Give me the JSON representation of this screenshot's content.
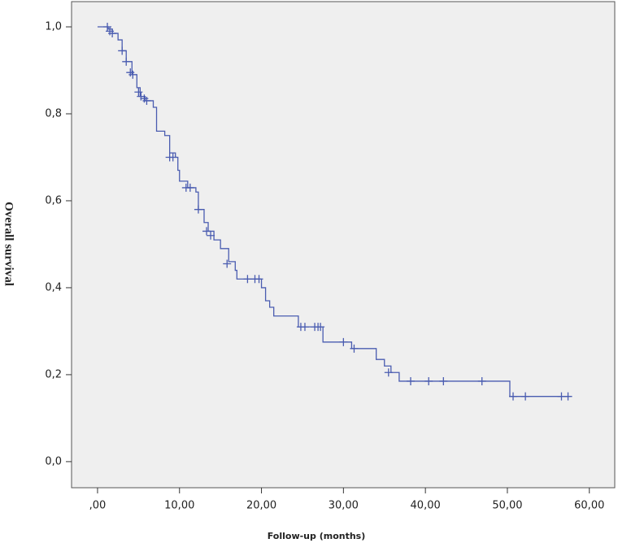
{
  "chart_data": {
    "type": "step",
    "y_label": "Overall survival",
    "x_label": "Follow-up (months)",
    "color": "#4a5cb0",
    "x": [
      0,
      1.3,
      1.8,
      2.5,
      3.0,
      3.5,
      4.2,
      4.8,
      5.2,
      5.8,
      6.8,
      7.2,
      8.2,
      8.8,
      9.5,
      9.8,
      10.0,
      11.0,
      12.0,
      12.3,
      13.0,
      13.5,
      14.2,
      15.0,
      16.0,
      16.8,
      17.0,
      20.0,
      20.5,
      21.0,
      21.5,
      24.5,
      27.5,
      31.0,
      34.0,
      35.0,
      35.8,
      36.8,
      50.3,
      57.5
    ],
    "values": [
      1.0,
      0.995,
      0.985,
      0.97,
      0.945,
      0.92,
      0.89,
      0.86,
      0.84,
      0.83,
      0.815,
      0.76,
      0.75,
      0.71,
      0.7,
      0.67,
      0.645,
      0.63,
      0.62,
      0.58,
      0.55,
      0.53,
      0.51,
      0.49,
      0.46,
      0.44,
      0.42,
      0.4,
      0.37,
      0.355,
      0.335,
      0.31,
      0.275,
      0.26,
      0.235,
      0.22,
      0.205,
      0.185,
      0.15,
      0.15
    ],
    "censored": {
      "x": [
        1.2,
        1.5,
        1.8,
        3.0,
        3.5,
        4.0,
        4.3,
        5.0,
        5.3,
        5.7,
        6.0,
        8.8,
        9.2,
        10.8,
        11.3,
        12.3,
        13.3,
        13.8,
        15.8,
        18.3,
        19.2,
        19.7,
        24.8,
        25.3,
        26.5,
        26.9,
        27.2,
        30.0,
        31.3,
        35.5,
        38.2,
        40.4,
        42.2,
        46.9,
        50.7,
        52.2,
        56.6,
        57.4
      ],
      "values": [
        1.0,
        0.99,
        0.985,
        0.945,
        0.92,
        0.895,
        0.89,
        0.85,
        0.84,
        0.835,
        0.83,
        0.7,
        0.7,
        0.63,
        0.63,
        0.58,
        0.53,
        0.52,
        0.455,
        0.42,
        0.42,
        0.42,
        0.31,
        0.31,
        0.31,
        0.31,
        0.31,
        0.275,
        0.26,
        0.205,
        0.185,
        0.185,
        0.185,
        0.185,
        0.15,
        0.15,
        0.15,
        0.15
      ]
    },
    "xlim": [
      -3.17,
      63.1
    ],
    "ylim": [
      -0.06,
      1.058
    ],
    "xticks": [
      {
        "value": 0,
        "label": ",00"
      },
      {
        "value": 10,
        "label": "10,00"
      },
      {
        "value": 20,
        "label": "20,00"
      },
      {
        "value": 30,
        "label": "30,00"
      },
      {
        "value": 40,
        "label": "40,00"
      },
      {
        "value": 50,
        "label": "50,00"
      },
      {
        "value": 60,
        "label": "60,00"
      }
    ],
    "yticks": [
      {
        "value": 0,
        "label": "0,0"
      },
      {
        "value": 0.2,
        "label": "0,2"
      },
      {
        "value": 0.4,
        "label": "0,4"
      },
      {
        "value": 0.6,
        "label": "0,6"
      },
      {
        "value": 0.8,
        "label": "0,8"
      },
      {
        "value": 1.0,
        "label": "1,0"
      }
    ]
  }
}
